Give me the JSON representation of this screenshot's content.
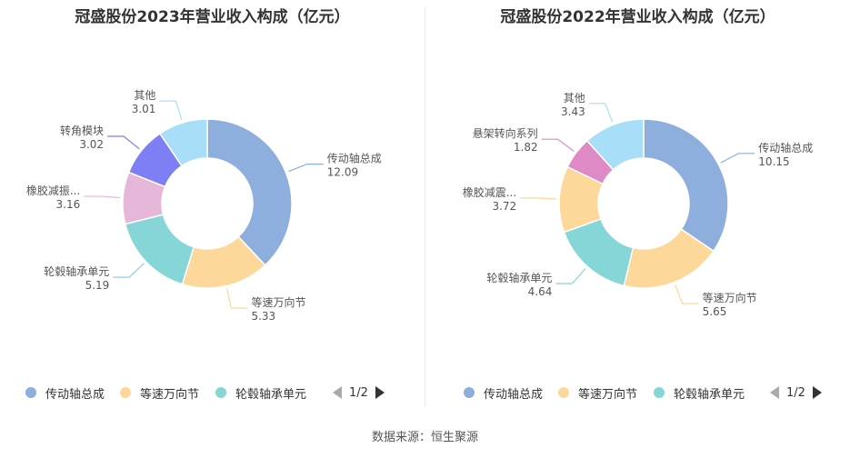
{
  "source": "数据来源：恒生聚源",
  "chart_data": [
    {
      "type": "pie",
      "title": "冠盛股份2023年营业收入构成（亿元）",
      "slices": [
        {
          "label": "传动轴总成",
          "value": 12.09,
          "value_text": "12.09",
          "color": "#8eaedd"
        },
        {
          "label": "等速万向节",
          "value": 5.33,
          "value_text": "5.33",
          "color": "#fdd89a"
        },
        {
          "label": "轮毂轴承单元",
          "value": 5.19,
          "value_text": "5.19",
          "color": "#86d6d8"
        },
        {
          "label": "橡胶减振...",
          "value": 3.16,
          "value_text": "3.16",
          "color": "#e6b7d9"
        },
        {
          "label": "转角模块",
          "value": 3.02,
          "value_text": "3.02",
          "color": "#7e7ef5"
        },
        {
          "label": "其他",
          "value": 3.01,
          "value_text": "3.01",
          "color": "#a8def7"
        }
      ],
      "legend": {
        "items": [
          {
            "label": "传动轴总成",
            "color": "#8eaedd"
          },
          {
            "label": "等速万向节",
            "color": "#fdd89a"
          },
          {
            "label": "轮毂轴承单元",
            "color": "#86d6d8"
          }
        ],
        "page": "1/2"
      }
    },
    {
      "type": "pie",
      "title": "冠盛股份2022年营业收入构成（亿元）",
      "slices": [
        {
          "label": "传动轴总成",
          "value": 10.15,
          "value_text": "10.15",
          "color": "#8eaedd"
        },
        {
          "label": "等速万向节",
          "value": 5.65,
          "value_text": "5.65",
          "color": "#fdd89a"
        },
        {
          "label": "轮毂轴承单元",
          "value": 4.64,
          "value_text": "4.64",
          "color": "#86d6d8"
        },
        {
          "label": "橡胶减震...",
          "value": 3.72,
          "value_text": "3.72",
          "color": "#fdd89a"
        },
        {
          "label": "悬架转向系列",
          "value": 1.82,
          "value_text": "1.82",
          "color": "#df8ac6"
        },
        {
          "label": "其他",
          "value": 3.43,
          "value_text": "3.43",
          "color": "#a8def7"
        }
      ],
      "legend": {
        "items": [
          {
            "label": "传动轴总成",
            "color": "#8eaedd"
          },
          {
            "label": "等速万向节",
            "color": "#fdd89a"
          },
          {
            "label": "轮毂轴承单元",
            "color": "#86d6d8"
          }
        ],
        "page": "1/2"
      }
    }
  ]
}
